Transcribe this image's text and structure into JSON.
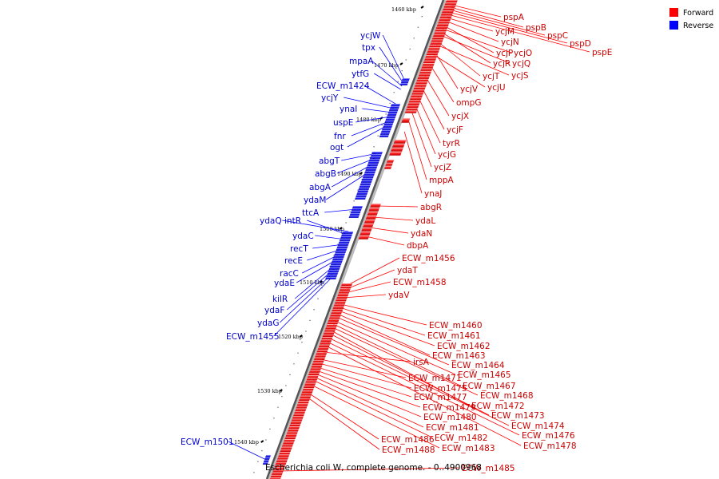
{
  "caption": "Escherichia coli W, complete genome. - 0..4900968",
  "legend": [
    {
      "label": "Forward",
      "color": "#ff0000"
    },
    {
      "label": "Reverse",
      "color": "#0000ff"
    }
  ],
  "ticks": [
    "1460 kbp",
    "1470 kbp",
    "1480 kbp",
    "1490 kbp",
    "1500 kbp",
    "1510 kbp",
    "1520 kbp",
    "1530 kbp",
    "1540 kbp"
  ],
  "forward_genes": [
    "pspA",
    "pspB",
    "pspC",
    "pspD",
    "pspE",
    "ycjM",
    "ycjN",
    "ycjP",
    "ycjO",
    "ycjR",
    "ycjQ",
    "ycjT",
    "ycjS",
    "ycjV",
    "ycjU",
    "ompG",
    "ycjX",
    "ycjF",
    "tyrR",
    "ycjG",
    "ycjZ",
    "mppA",
    "ynaJ",
    "abgR",
    "ydaL",
    "ydaN",
    "dbpA",
    "ECW_m1456",
    "ydaT",
    "ECW_m1458",
    "ydaV",
    "ECW_m1460",
    "ECW_m1461",
    "ECW_m1462",
    "ECW_m1463",
    "irsA",
    "ECW_m1464",
    "ECW_m1465",
    "ECW_m1471",
    "ECW_m1467",
    "ECW_m1475",
    "ECW_m1468",
    "ECW_m1477",
    "ECW_m1472",
    "ECW_m1479",
    "ECW_m1473",
    "ECW_m1480",
    "ECW_m1474",
    "ECW_m1481",
    "ECW_m1476",
    "ECW_m1482",
    "ECW_m1486",
    "ECW_m1478",
    "ECW_m1483",
    "ECW_m1488",
    "ECW_m1485"
  ],
  "reverse_genes": [
    "ycjW",
    "tpx",
    "mpaA",
    "ytfG",
    "ECW_m1424",
    "ycjY",
    "ynaI",
    "uspE",
    "fnr",
    "ogt",
    "abgT",
    "abgB",
    "abgA",
    "ydaM",
    "ttcA",
    "ydaQ",
    "intR",
    "ydaC",
    "recT",
    "recE",
    "racC",
    "ydaE",
    "kilR",
    "ydaF",
    "ydaG",
    "ECW_m1455",
    "ECW_m1501"
  ]
}
